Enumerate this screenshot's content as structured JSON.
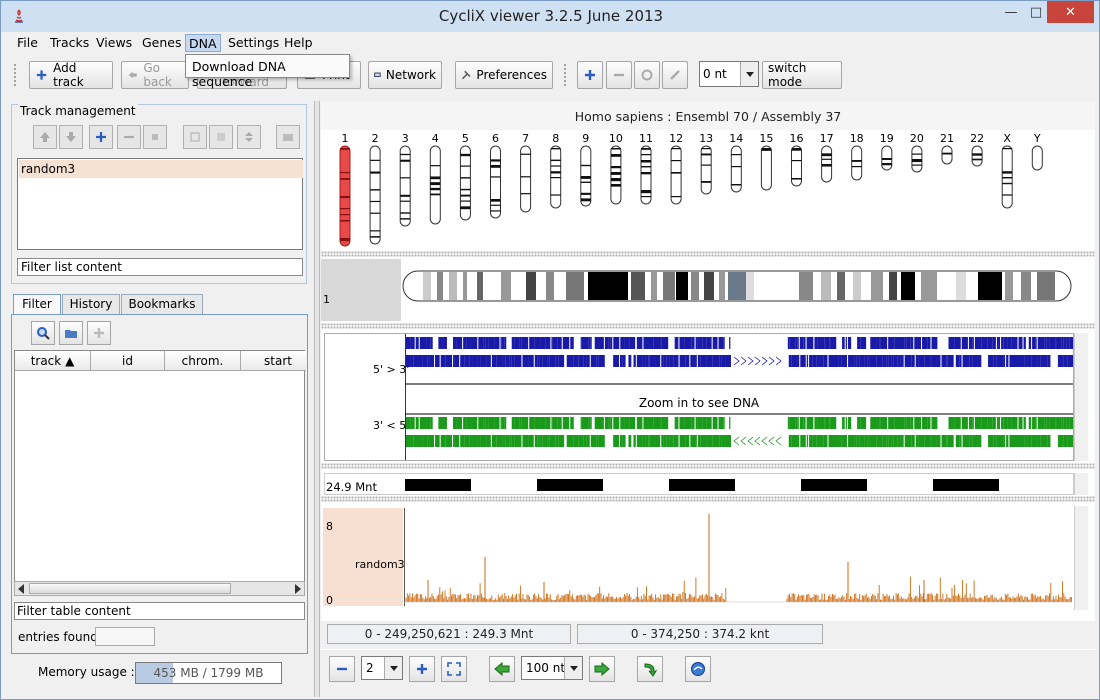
{
  "window": {
    "title": "CycliX viewer 3.2.5 June 2013"
  },
  "menu": {
    "items": [
      "File",
      "Tracks",
      "Views",
      "Genes",
      "DNA",
      "Settings",
      "Help"
    ],
    "active": "DNA",
    "dropdown_item": "Download DNA sequence"
  },
  "toolbar": {
    "add_track": "Add track",
    "go_back": "Go back",
    "hidden_button": "Go forward",
    "print": "Print",
    "network": "Network",
    "preferences": "Preferences",
    "nt_value": "0 nt",
    "switch_mode": "switch mode"
  },
  "track_management": {
    "label": "Track management",
    "items": [
      "random3"
    ],
    "filter_placeholder": "Filter list content"
  },
  "tabs": [
    "Filter",
    "History",
    "Bookmarks"
  ],
  "table": {
    "columns": [
      "track",
      "id",
      "chrom.",
      "start"
    ],
    "filter_placeholder": "Filter table content",
    "entries_label": "entries found",
    "entries_value": ""
  },
  "memory": {
    "label": "Memory usage :",
    "value": "453 MB / 1799 MB",
    "fraction": 0.252
  },
  "genome": {
    "species": "Homo sapiens : Ensembl 70 / Assembly 37",
    "chromosomes": [
      "1",
      "2",
      "3",
      "4",
      "5",
      "6",
      "7",
      "8",
      "9",
      "10",
      "11",
      "12",
      "13",
      "14",
      "15",
      "16",
      "17",
      "18",
      "19",
      "20",
      "21",
      "22",
      "X",
      "Y"
    ],
    "selected": "1",
    "selected_chrom_label": "1"
  },
  "strands": {
    "forward": "5' > 3'",
    "reverse": "3' < 5'",
    "zoom_message": "Zoom in to see DNA"
  },
  "scale": {
    "label": "24.9 Mnt"
  },
  "coverage": {
    "track": "random3",
    "max": "8",
    "min": "0"
  },
  "coords": {
    "left": "0 - 249,250,621 : 249.3 Mnt",
    "right": "0 - 374,250 : 374.2 knt"
  },
  "nav": {
    "zoom_level": "2",
    "step": "100 nt"
  },
  "colors": {
    "forward": "#1a1aa8",
    "reverse": "#1a9a1a",
    "coverage": "#cc6a10",
    "selected_chrom": "#e84848"
  }
}
